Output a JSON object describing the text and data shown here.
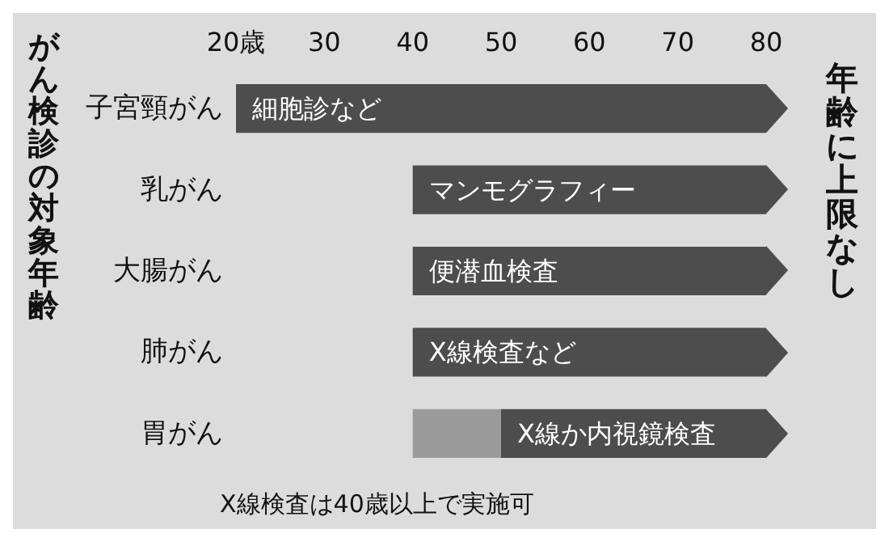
{
  "chart_data": {
    "type": "bar",
    "orientation": "horizontal",
    "title": "がん検診の対象年齢",
    "y2label": "年齢に上限なし",
    "categories": [
      "子宮頸がん",
      "乳がん",
      "大腸がん",
      "肺がん",
      "胃がん"
    ],
    "series": [
      {
        "color": "#4d4d4d",
        "base": [
          20,
          40,
          40,
          40,
          50
        ],
        "values": [
          60,
          40,
          40,
          40,
          30
        ],
        "value_labels": [
          "細胞診など",
          "マンモグラフィー",
          "便潜血検査",
          "X線検査など",
          "X線か内視鏡検査"
        ]
      },
      {
        "color": "#9b9b9b",
        "base": [
          null,
          null,
          null,
          null,
          40
        ],
        "values": [
          null,
          null,
          null,
          null,
          10
        ]
      }
    ],
    "xlim": [
      20,
      80
    ],
    "xticks": [
      {
        "value": 20,
        "label": "20歳"
      },
      30,
      40,
      50,
      60,
      70,
      80
    ],
    "annotations": [
      "X線検査は40歳以上で実施可"
    ],
    "grid": false
  }
}
